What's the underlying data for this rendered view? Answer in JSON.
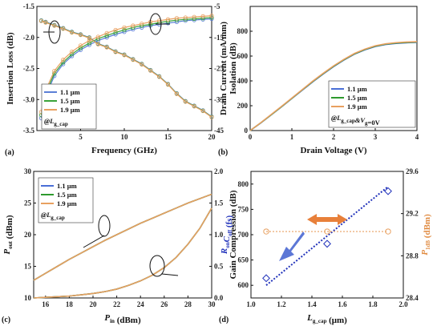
{
  "panels": [
    {
      "id": "a",
      "panel_label": "(a)",
      "annotation": "@L",
      "annotation_sub": "g_cap",
      "chart_data": {
        "type": "line",
        "xlabel": "Frequency (GHz)",
        "ylabel": "Insertion Loss (dB)",
        "ylabel_right": "Isolation (dB)",
        "xlim": [
          0,
          20
        ],
        "ylim": [
          -3.5,
          -1.5
        ],
        "ylim_right": [
          -45,
          -5
        ],
        "xticks": [
          "5",
          "10",
          "15",
          "20"
        ],
        "yticks": [
          "-3.5",
          "-3.0",
          "-2.5",
          "-2.0",
          "-1.5"
        ],
        "yticks_right": [
          "-45",
          "-35",
          "-25",
          "-15",
          "-5"
        ],
        "legend_position": "bottom-left",
        "x": [
          0.5,
          1,
          2,
          3,
          4,
          5,
          6,
          7,
          8,
          9,
          10,
          11,
          12,
          13,
          14,
          15,
          16,
          17,
          18,
          19,
          20
        ],
        "series": [
          {
            "name": "1.1 μm",
            "color": "#5b7fd6",
            "marker": "circle",
            "axis": "left",
            "values": [
              -3.3,
              -2.95,
              -2.62,
              -2.43,
              -2.3,
              -2.2,
              -2.12,
              -2.05,
              -2.0,
              -1.95,
              -1.91,
              -1.87,
              -1.84,
              -1.81,
              -1.79,
              -1.77,
              -1.75,
              -1.73,
              -1.72,
              -1.71,
              -1.7
            ]
          },
          {
            "name": "1.5 μm",
            "color": "#3aa33a",
            "marker": "circle",
            "axis": "left",
            "values": [
              -3.25,
              -2.9,
              -2.58,
              -2.4,
              -2.27,
              -2.17,
              -2.09,
              -2.02,
              -1.97,
              -1.92,
              -1.88,
              -1.84,
              -1.81,
              -1.79,
              -1.76,
              -1.74,
              -1.72,
              -1.71,
              -1.7,
              -1.69,
              -1.68
            ]
          },
          {
            "name": "1.9 μm",
            "color": "#e8a060",
            "marker": "circle",
            "axis": "left",
            "values": [
              -3.2,
              -2.85,
              -2.54,
              -2.36,
              -2.23,
              -2.13,
              -2.05,
              -1.99,
              -1.93,
              -1.88,
              -1.84,
              -1.81,
              -1.78,
              -1.75,
              -1.73,
              -1.71,
              -1.69,
              -1.68,
              -1.67,
              -1.66,
              -1.65
            ]
          },
          {
            "name": "1.1 μm",
            "color": "#5b7fd6",
            "marker": "circle",
            "axis": "right",
            "values": [
              -9.5,
              -10,
              -11,
              -12,
              -13.2,
              -14,
              -15,
              -17,
              -18,
              -19.5,
              -20.5,
              -22,
              -23.5,
              -25.5,
              -27.5,
              -30,
              -33,
              -35.5,
              -37,
              -38.5,
              -40.5
            ]
          },
          {
            "name": "1.5 μm",
            "color": "#3aa33a",
            "marker": "circle",
            "axis": "right",
            "values": [
              -9.6,
              -10.1,
              -11.1,
              -12.1,
              -13.3,
              -14.1,
              -15.1,
              -17.1,
              -18.1,
              -19.6,
              -20.6,
              -22.1,
              -23.6,
              -25.6,
              -27.6,
              -30.1,
              -33.1,
              -35.6,
              -37.1,
              -38.6,
              -40.6
            ]
          },
          {
            "name": "1.9 μm",
            "color": "#e8a060",
            "marker": "circle",
            "axis": "right",
            "values": [
              -9.7,
              -10.2,
              -11.2,
              -12.2,
              -13.4,
              -14.2,
              -15.2,
              -17.2,
              -18.2,
              -19.7,
              -20.7,
              -22.2,
              -23.7,
              -25.7,
              -27.7,
              -30.2,
              -33.2,
              -35.7,
              -37.2,
              -38.7,
              -40.7
            ]
          }
        ]
      }
    },
    {
      "id": "b",
      "panel_label": "(b)",
      "annotation": "@L",
      "annotation_sub": "g_cap",
      "annotation_tail": "&V",
      "annotation_tail_sub": "g",
      "annotation_tail_end": "=0V",
      "chart_data": {
        "type": "line",
        "xlabel": "Drain Voltage (V)",
        "ylabel": "Drain Current (mA/mm)",
        "xlim": [
          0,
          4
        ],
        "ylim": [
          0,
          1000
        ],
        "xticks": [
          "0",
          "1",
          "2",
          "3",
          "4"
        ],
        "yticks": [
          "0",
          "200",
          "400",
          "600",
          "800"
        ],
        "legend_position": "bottom-right",
        "x": [
          0,
          0.25,
          0.5,
          0.75,
          1,
          1.25,
          1.5,
          1.75,
          2,
          2.25,
          2.5,
          2.75,
          3,
          3.25,
          3.5,
          3.75,
          4
        ],
        "series": [
          {
            "name": "1.1 μm",
            "color": "#4a6fd6",
            "values": [
              0,
              60,
              125,
              190,
              258,
              325,
              392,
              455,
              515,
              568,
              615,
              650,
              677,
              693,
              702,
              707,
              710
            ]
          },
          {
            "name": "1.5 μm",
            "color": "#2e9a2e",
            "values": [
              0,
              61,
              126,
              192,
              260,
              328,
              395,
              458,
              518,
              571,
              618,
              653,
              680,
              696,
              705,
              710,
              713
            ]
          },
          {
            "name": "1.9 μm",
            "color": "#e8a060",
            "values": [
              0,
              62,
              128,
              194,
              262,
              330,
              398,
              461,
              521,
              574,
              621,
              656,
              683,
              699,
              708,
              713,
              716
            ]
          }
        ]
      }
    },
    {
      "id": "c",
      "panel_label": "(c)",
      "annotation": "@L",
      "annotation_sub": "g_cap",
      "chart_data": {
        "type": "line",
        "xlabel": "P",
        "xlabel_sub": "in",
        "xlabel_tail": " (dBm)",
        "ylabel": "P",
        "ylabel_sub": "out",
        "ylabel_tail": " (dBm)",
        "ylabel_right": "Gain Compression (dB)",
        "xlim": [
          15,
          30
        ],
        "ylim": [
          10,
          30
        ],
        "ylim_right": [
          0,
          2.0
        ],
        "xticks": [
          "16",
          "18",
          "20",
          "22",
          "24",
          "26",
          "28",
          "30"
        ],
        "yticks": [
          "10",
          "15",
          "20",
          "25",
          "30"
        ],
        "yticks_right": [
          "0.0",
          "0.5",
          "1.0",
          "1.5",
          "2.0"
        ],
        "legend_position": "top-left",
        "x": [
          15,
          16,
          17,
          18,
          19,
          20,
          21,
          22,
          23,
          24,
          25,
          26,
          27,
          28,
          29,
          30
        ],
        "series": [
          {
            "name": "1.1 μm",
            "color": "#4a6fd6",
            "axis": "left",
            "values": [
              12.8,
              13.9,
              15.0,
              16.1,
              17.1,
              18.1,
              19.1,
              20.0,
              20.9,
              21.8,
              22.6,
              23.4,
              24.2,
              25.0,
              25.7,
              26.4
            ]
          },
          {
            "name": "1.5 μm",
            "color": "#2e9a2e",
            "axis": "left",
            "values": [
              12.8,
              13.9,
              15.0,
              16.1,
              17.1,
              18.1,
              19.1,
              20.0,
              20.9,
              21.8,
              22.6,
              23.4,
              24.2,
              25.0,
              25.7,
              26.4
            ]
          },
          {
            "name": "1.9 μm",
            "color": "#e8a060",
            "axis": "left",
            "values": [
              12.8,
              13.9,
              15.0,
              16.1,
              17.1,
              18.1,
              19.1,
              20.0,
              20.9,
              21.8,
              22.6,
              23.4,
              24.2,
              25.0,
              25.7,
              26.4
            ]
          },
          {
            "name": "1.1 μm",
            "color": "#4a6fd6",
            "axis": "right",
            "values": [
              0.0,
              0.01,
              0.02,
              0.03,
              0.05,
              0.07,
              0.1,
              0.14,
              0.2,
              0.27,
              0.36,
              0.48,
              0.64,
              0.85,
              1.1,
              1.42
            ]
          },
          {
            "name": "1.5 μm",
            "color": "#2e9a2e",
            "axis": "right",
            "values": [
              0.0,
              0.01,
              0.02,
              0.03,
              0.05,
              0.07,
              0.1,
              0.14,
              0.2,
              0.27,
              0.36,
              0.48,
              0.64,
              0.85,
              1.1,
              1.42
            ]
          },
          {
            "name": "1.9 μm",
            "color": "#e8a060",
            "axis": "right",
            "values": [
              0.0,
              0.01,
              0.02,
              0.03,
              0.05,
              0.07,
              0.1,
              0.14,
              0.2,
              0.27,
              0.36,
              0.48,
              0.64,
              0.85,
              1.1,
              1.42
            ]
          }
        ]
      }
    },
    {
      "id": "d",
      "panel_label": "(d)",
      "chart_data": {
        "type": "scatter",
        "xlabel": "L",
        "xlabel_sub": "g_cap",
        "xlabel_tail": " (μm)",
        "ylabel": "R",
        "ylabel_sub": "on",
        "ylabel_mid": "C",
        "ylabel_mid_sub": "off",
        "ylabel_tail": " (fs)",
        "ylabel_right": "P",
        "ylabel_right_sub": "1dB",
        "ylabel_right_tail": " (dBm)",
        "xlim": [
          1.0,
          2.0
        ],
        "ylim": [
          575,
          825
        ],
        "ylim_right": [
          28.4,
          29.6
        ],
        "xticks": [
          "1.0",
          "1.2",
          "1.4",
          "1.6",
          "1.8",
          "2.0"
        ],
        "yticks": [
          "600",
          "650",
          "700",
          "750",
          "800"
        ],
        "yticks_right": [
          "28.4",
          "28.8",
          "29.2",
          "29.6"
        ],
        "x": [
          1.1,
          1.5,
          1.9
        ],
        "series": [
          {
            "name": "RonCoff",
            "color": "#2233bb",
            "marker": "diamond",
            "axis": "left",
            "values": [
              614,
              682,
              786
            ]
          },
          {
            "name": "P1dB",
            "color": "#e8a060",
            "marker": "circle",
            "axis": "right",
            "values": [
              29.03,
              29.03,
              29.03
            ]
          }
        ],
        "fit_left": [
          [
            1.1,
            600
          ],
          [
            1.9,
            795
          ]
        ],
        "fit_right": [
          [
            1.1,
            29.03
          ],
          [
            1.9,
            29.03
          ]
        ]
      }
    }
  ]
}
